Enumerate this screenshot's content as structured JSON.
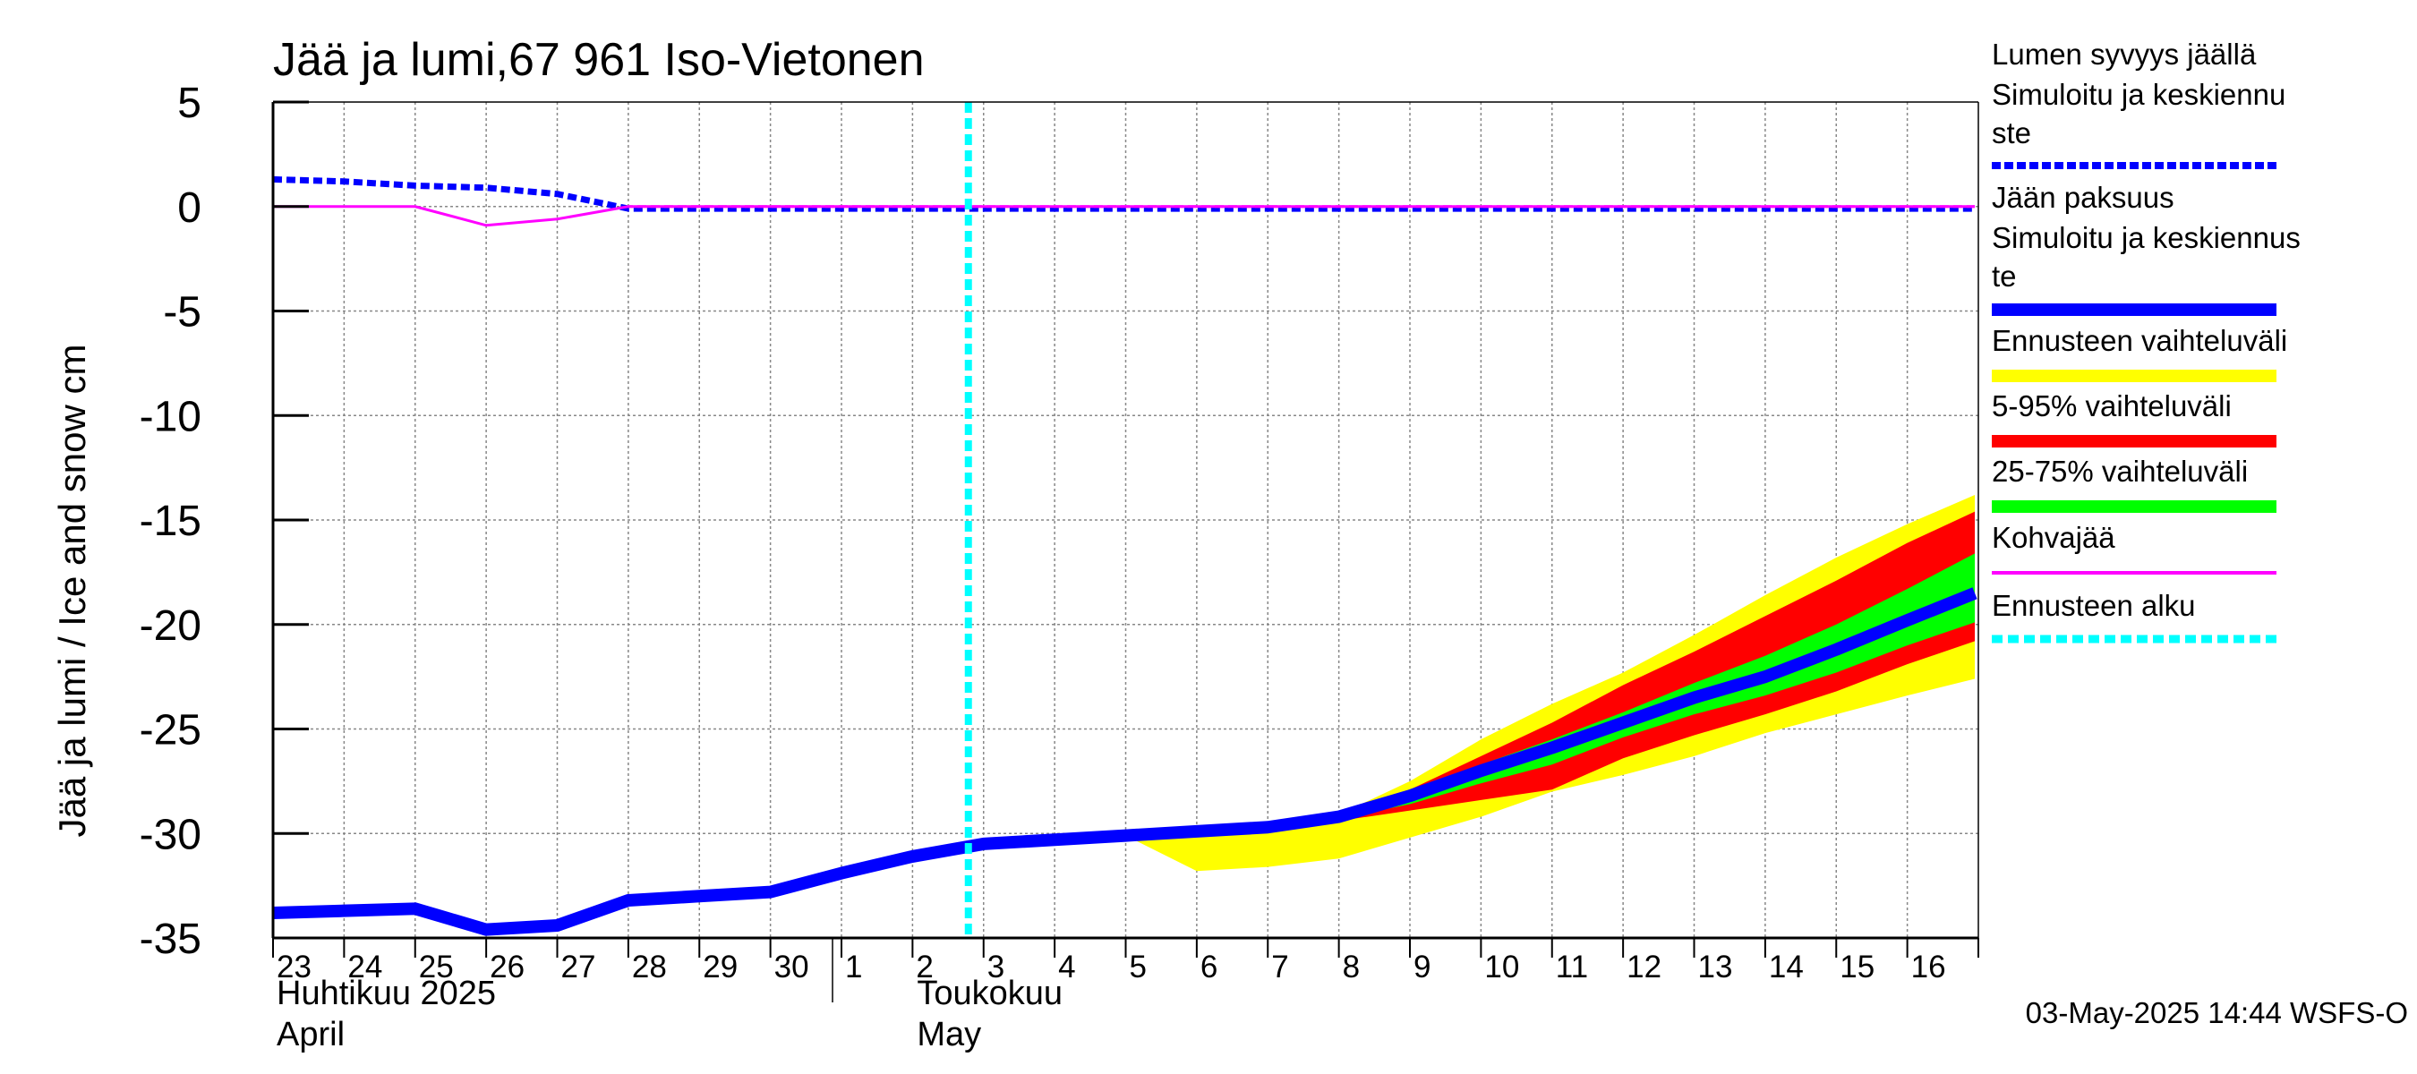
{
  "chart_data": {
    "type": "line",
    "title": "Jää ja lumi,67 961 Iso-Vietonen",
    "ylabel": "Jää ja lumi / Ice and snow    cm",
    "ylim": [
      -35,
      5
    ],
    "yticks": [
      5,
      0,
      -5,
      -10,
      -15,
      -20,
      -25,
      -30,
      -35
    ],
    "x_day_labels": [
      "23",
      "24",
      "25",
      "26",
      "27",
      "28",
      "29",
      "30",
      "1",
      "2",
      "3",
      "4",
      "5",
      "6",
      "7",
      "8",
      "9",
      "10",
      "11",
      "12",
      "13",
      "14",
      "15",
      "16"
    ],
    "month_labels": [
      {
        "fi": "Huhtikuu  2025",
        "en": "April",
        "at_index": 0
      },
      {
        "fi": "Toukokuu",
        "en": "May",
        "at_index": 9
      }
    ],
    "forecast_start_index": 10,
    "series": [
      {
        "name": "Lumen syvyys jäällä Simuloitu ja keskiennuste",
        "style": "dashed",
        "color": "#0000ff",
        "x": [
          0,
          1,
          2,
          3,
          4,
          5,
          23.95
        ],
        "values": [
          1.3,
          1.2,
          1.0,
          0.9,
          0.6,
          -0.1,
          -0.1
        ]
      },
      {
        "name": "Jään paksuus Simuloitu ja keskiennuste",
        "style": "solid",
        "color": "#0000ff",
        "x": [
          0,
          1,
          2,
          3,
          4,
          5,
          6,
          7,
          8,
          9,
          10,
          11,
          12,
          13,
          14,
          15,
          16,
          17,
          18,
          19,
          20,
          21,
          22,
          23,
          23.95
        ],
        "values": [
          -33.8,
          -33.7,
          -33.6,
          -34.6,
          -34.4,
          -33.2,
          -33.0,
          -32.8,
          -31.9,
          -31.1,
          -30.5,
          -30.3,
          -30.1,
          -29.9,
          -29.7,
          -29.2,
          -28.2,
          -27.0,
          -25.9,
          -24.7,
          -23.5,
          -22.5,
          -21.2,
          -19.8,
          -18.5
        ]
      },
      {
        "name": "Kohvajää",
        "style": "solid",
        "color": "#ff00ff",
        "x": [
          0,
          1,
          2,
          3,
          4,
          5,
          23.95
        ],
        "values": [
          0,
          0,
          0,
          -0.9,
          -0.6,
          0,
          0
        ]
      }
    ],
    "bands": [
      {
        "name": "Ennusteen vaihteluväli",
        "color": "#ffff00",
        "x": [
          12,
          13,
          14,
          15,
          16,
          17,
          18,
          19,
          20,
          21,
          22,
          23,
          23.95
        ],
        "upper": [
          -30.1,
          -29.9,
          -29.7,
          -29.1,
          -27.5,
          -25.5,
          -23.8,
          -22.3,
          -20.5,
          -18.6,
          -16.8,
          -15.2,
          -13.8
        ],
        "lower": [
          -30.1,
          -31.8,
          -31.6,
          -31.2,
          -30.2,
          -29.2,
          -28.0,
          -27.2,
          -26.3,
          -25.2,
          -24.3,
          -23.4,
          -22.6
        ]
      },
      {
        "name": "5-95% vaihteluväli",
        "color": "#ff0000",
        "x": [
          15,
          16,
          17,
          18,
          19,
          20,
          21,
          22,
          23,
          23.95
        ],
        "upper": [
          -29.1,
          -27.9,
          -26.3,
          -24.7,
          -22.9,
          -21.3,
          -19.6,
          -17.9,
          -16.1,
          -14.6
        ],
        "lower": [
          -29.4,
          -28.9,
          -28.4,
          -27.9,
          -26.4,
          -25.3,
          -24.3,
          -23.2,
          -21.9,
          -20.8
        ]
      },
      {
        "name": "25-75% vaihteluväli",
        "color": "#00ff00",
        "x": [
          15,
          16,
          17,
          18,
          19,
          20,
          21,
          22,
          23,
          23.95
        ],
        "upper": [
          -29.1,
          -28.0,
          -26.7,
          -25.5,
          -24.2,
          -22.8,
          -21.5,
          -20.0,
          -18.3,
          -16.6
        ],
        "lower": [
          -29.3,
          -28.6,
          -27.6,
          -26.7,
          -25.4,
          -24.3,
          -23.4,
          -22.3,
          -21.0,
          -19.9
        ]
      }
    ],
    "legend": [
      {
        "label": "Lumen syvyys jäällä\n Simuloitu ja keskiennu\nste",
        "color": "#0000ff",
        "style": "dashed"
      },
      {
        "label": "Jään paksuus\n Simuloitu ja keskiennus\nte",
        "color": "#0000ff",
        "style": "solid-thick"
      },
      {
        "label": "Ennusteen vaihteluväli",
        "color": "#ffff00",
        "style": "band"
      },
      {
        "label": "5-95% vaihteluväli",
        "color": "#ff0000",
        "style": "band"
      },
      {
        "label": "25-75% vaihteluväli",
        "color": "#00ff00",
        "style": "band"
      },
      {
        "label": "Kohvajää",
        "color": "#ff00ff",
        "style": "solid-thin"
      },
      {
        "label": "Ennusteen alku",
        "color": "#00ffff",
        "style": "dashed-thick"
      }
    ],
    "footer": "03-May-2025 14:44 WSFS-O",
    "grid": true
  }
}
